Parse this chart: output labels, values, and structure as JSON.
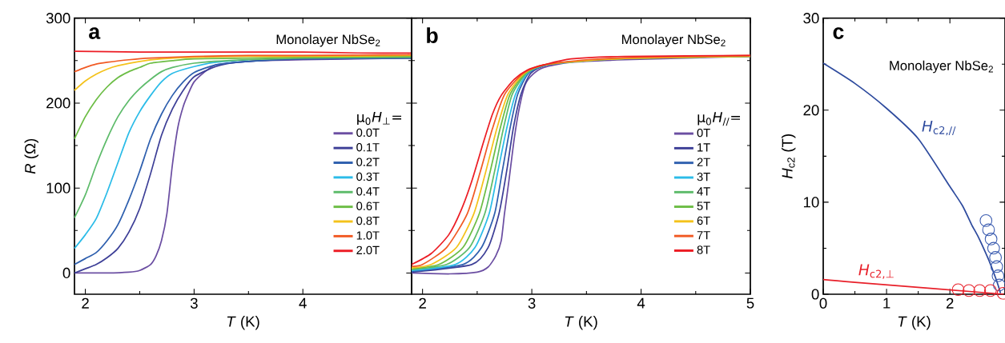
{
  "chart_data": [
    {
      "type": "line",
      "title": "a",
      "subtitle": "Monolayer NbSe$_{2}$",
      "xlabel": "*T* (K)",
      "ylabel": "*R* (Ω)",
      "legend_title": "μ$_{0}$*H*$_{⊥}$=",
      "legend": "right",
      "xlim": [
        1.9,
        5
      ],
      "ylim": [
        -25,
        300
      ],
      "xticks": [
        2,
        3,
        4
      ],
      "yticks": [
        0,
        100,
        200,
        300
      ],
      "series": [
        {
          "name": "0.0T",
          "color": "#6b4ea2",
          "x": [
            1.9,
            2.2,
            2.4,
            2.5,
            2.6,
            2.65,
            2.7,
            2.75,
            2.8,
            2.85,
            2.9,
            2.95,
            3.0,
            3.1,
            3.2,
            3.4,
            3.6,
            4.0,
            4.5,
            5.0
          ],
          "values": [
            0,
            0,
            1,
            3,
            10,
            20,
            38,
            70,
            127,
            171,
            196,
            212,
            225,
            237,
            245,
            248,
            250,
            251,
            252,
            253
          ]
        },
        {
          "name": "0.1T",
          "color": "#3d3f97",
          "x": [
            1.9,
            2.0,
            2.1,
            2.2,
            2.3,
            2.4,
            2.5,
            2.6,
            2.7,
            2.8,
            2.9,
            3.0,
            3.2,
            3.4,
            4.0,
            5.0
          ],
          "values": [
            0,
            5,
            10,
            18,
            29,
            48,
            76,
            117,
            162,
            193,
            215,
            231,
            243,
            248,
            252,
            253
          ]
        },
        {
          "name": "0.2T",
          "color": "#2e5fae",
          "x": [
            1.9,
            2.0,
            2.1,
            2.2,
            2.3,
            2.4,
            2.5,
            2.6,
            2.7,
            2.8,
            2.9,
            3.0,
            3.2,
            3.5,
            4.0,
            5.0
          ],
          "values": [
            10,
            17,
            24,
            38,
            57,
            86,
            120,
            158,
            187,
            209,
            225,
            236,
            245,
            249,
            252,
            253
          ]
        },
        {
          "name": "0.3T",
          "color": "#2bbce8",
          "x": [
            1.9,
            2.0,
            2.1,
            2.2,
            2.3,
            2.4,
            2.5,
            2.6,
            2.7,
            2.8,
            3.0,
            3.2,
            3.5
          ],
          "values": [
            29,
            45,
            64,
            95,
            130,
            165,
            190,
            209,
            225,
            235,
            243,
            248,
            251
          ]
        },
        {
          "name": "0.4T",
          "color": "#5dbb6a",
          "x": [
            1.9,
            2.0,
            2.1,
            2.2,
            2.3,
            2.4,
            2.5,
            2.6,
            2.7,
            2.8,
            3.0,
            3.3,
            4.0,
            5.0
          ],
          "values": [
            65,
            92,
            127,
            158,
            184,
            203,
            217,
            228,
            237,
            242,
            247,
            250,
            253,
            254
          ]
        },
        {
          "name": "0.6T",
          "color": "#6cbd45",
          "x": [
            1.9,
            2.0,
            2.1,
            2.2,
            2.3,
            2.4,
            2.5,
            2.6,
            2.8,
            3.0,
            3.5,
            4.0,
            5.0
          ],
          "values": [
            158,
            184,
            204,
            219,
            230,
            237,
            242,
            247,
            250,
            252,
            253,
            254,
            255
          ]
        },
        {
          "name": "0.8T",
          "color": "#f4c21b",
          "x": [
            1.9,
            2.0,
            2.1,
            2.2,
            2.3,
            2.5,
            2.7,
            3.0,
            3.5,
            4.0,
            5.0
          ],
          "values": [
            215,
            226,
            234,
            240,
            244,
            249,
            252,
            254,
            255,
            255,
            256
          ]
        },
        {
          "name": "1.0T",
          "color": "#f15a24",
          "x": [
            1.9,
            2.0,
            2.1,
            2.2,
            2.4,
            2.6,
            3.0,
            3.5,
            4.0,
            5.0
          ],
          "values": [
            237,
            242,
            246,
            248,
            251,
            253,
            255,
            256,
            256,
            257
          ]
        },
        {
          "name": "2.0T",
          "color": "#ec1c24",
          "x": [
            1.9,
            2.5,
            3.0,
            3.5,
            4.0,
            4.5,
            5.0
          ],
          "values": [
            261,
            260,
            260,
            260,
            260,
            259,
            259
          ]
        }
      ]
    },
    {
      "type": "line",
      "title": "b",
      "subtitle": "Monolayer NbSe$_{2}$",
      "xlabel": "*T* (K)",
      "legend_title": "μ$_{0}$*H*$_{//}$=",
      "legend": "right",
      "tick_labels": "x",
      "xlim": [
        1.9,
        5
      ],
      "ylim": [
        -25,
        300
      ],
      "xticks": [
        2,
        3,
        4,
        5
      ],
      "yticks": [
        0,
        100,
        200,
        300
      ],
      "series": [
        {
          "name": "0T",
          "color": "#6b4ea2",
          "x": [
            1.9,
            2.25,
            2.5,
            2.6,
            2.67,
            2.72,
            2.75,
            2.79,
            2.84,
            2.89,
            2.94,
            3.01,
            3.11,
            3.36,
            3.85,
            5.0
          ],
          "values": [
            0,
            -1,
            1,
            7,
            20,
            38,
            70,
            108,
            159,
            197,
            222,
            234,
            242,
            248,
            251,
            255
          ]
        },
        {
          "name": "1T",
          "color": "#3d3f97",
          "x": [
            1.9,
            2.45,
            2.6,
            2.7,
            2.77,
            2.83,
            2.9,
            2.99,
            3.14,
            3.5,
            4.0,
            5.0
          ],
          "values": [
            1,
            10,
            30,
            70,
            120,
            170,
            210,
            235,
            245,
            250,
            253,
            255
          ]
        },
        {
          "name": "2T",
          "color": "#2e5fae",
          "x": [
            1.9,
            2.37,
            2.54,
            2.66,
            2.73,
            2.8,
            2.87,
            2.97,
            3.13,
            3.5,
            4.0,
            5.0
          ],
          "values": [
            2,
            10,
            30,
            70,
            120,
            170,
            210,
            235,
            245,
            250,
            253,
            255
          ]
        },
        {
          "name": "3T",
          "color": "#2bbce8",
          "x": [
            1.9,
            2.3,
            2.48,
            2.61,
            2.69,
            2.77,
            2.85,
            2.96,
            3.13,
            3.5
          ],
          "values": [
            3,
            10,
            30,
            70,
            120,
            170,
            210,
            235,
            245,
            250
          ]
        },
        {
          "name": "4T",
          "color": "#5dbb6a",
          "x": [
            1.9,
            2.22,
            2.43,
            2.57,
            2.66,
            2.74,
            2.82,
            2.95,
            3.12,
            3.5,
            4.0,
            5.0
          ],
          "values": [
            4,
            10,
            30,
            70,
            120,
            170,
            210,
            235,
            245,
            250,
            253,
            255
          ]
        },
        {
          "name": "5T",
          "color": "#6cbd45",
          "x": [
            1.9,
            2.15,
            2.37,
            2.52,
            2.62,
            2.71,
            2.8,
            2.94,
            3.12,
            3.5,
            4.0,
            5.0
          ],
          "values": [
            5,
            10,
            30,
            70,
            120,
            170,
            210,
            235,
            245,
            250,
            253,
            255
          ]
        },
        {
          "name": "6T",
          "color": "#f4c21b",
          "x": [
            1.9,
            2.08,
            2.31,
            2.47,
            2.58,
            2.68,
            2.78,
            2.93,
            3.11,
            3.5,
            4.0,
            5.0
          ],
          "values": [
            6,
            10,
            30,
            70,
            120,
            170,
            210,
            235,
            245,
            250,
            253,
            255
          ]
        },
        {
          "name": "7T",
          "color": "#f15a24",
          "x": [
            1.9,
            2.0,
            2.22,
            2.41,
            2.53,
            2.64,
            2.75,
            2.92,
            3.11,
            3.5,
            4.0,
            5.0
          ],
          "values": [
            8,
            10,
            30,
            70,
            120,
            170,
            210,
            235,
            245,
            251,
            254,
            256
          ]
        },
        {
          "name": "8T",
          "color": "#ec1c24",
          "x": [
            1.9,
            2.08,
            2.24,
            2.35,
            2.45,
            2.56,
            2.64,
            2.72,
            2.84,
            2.96,
            3.11,
            3.36,
            3.85,
            5.0
          ],
          "values": [
            10,
            23,
            45,
            73,
            108,
            155,
            187,
            209,
            228,
            239,
            245,
            252,
            255,
            256
          ]
        }
      ]
    },
    {
      "type": "line",
      "title": "c",
      "subtitle": "Monolayer NbSe$_{2}$",
      "xlabel": "*T* (K)",
      "ylabel": "*H*$_{c2}$ (T)",
      "xlim": [
        0,
        2.87
      ],
      "ylim": [
        0,
        30
      ],
      "xticks": [
        0,
        1,
        2
      ],
      "yticks": [
        0,
        10,
        20,
        30
      ],
      "series": [
        {
          "name": "*H*$_{c2,//}$",
          "color": "#2e4b9e",
          "x": [
            0,
            0.5,
            1,
            1.5,
            2,
            2.2,
            2.34,
            2.45,
            2.59,
            2.65,
            2.72,
            2.76,
            2.8
          ],
          "values": [
            25.1,
            22.9,
            20.2,
            16.9,
            11.7,
            9.6,
            7.6,
            6.2,
            4.1,
            3.1,
            1.8,
            1.0,
            0.1
          ]
        },
        {
          "type": "scatter",
          "marker": "circle",
          "color": "#3b5cb0",
          "x": [
            2.57,
            2.61,
            2.65,
            2.69,
            2.72,
            2.74,
            2.76,
            2.78
          ],
          "values": [
            8,
            7,
            6,
            5,
            4,
            3,
            2,
            1
          ]
        },
        {
          "name": "*H*$_{c2,⊥}$",
          "color": "#e8202a",
          "x": [
            0,
            0.5,
            2.85
          ],
          "values": [
            1.6,
            1.3,
            0.0
          ]
        },
        {
          "type": "scatter",
          "marker": "circle",
          "color": "#e8202a",
          "x": [
            2.13,
            2.3,
            2.47,
            2.64,
            2.84
          ],
          "values": [
            0.5,
            0.4,
            0.4,
            0.4,
            0.1
          ]
        }
      ]
    }
  ]
}
